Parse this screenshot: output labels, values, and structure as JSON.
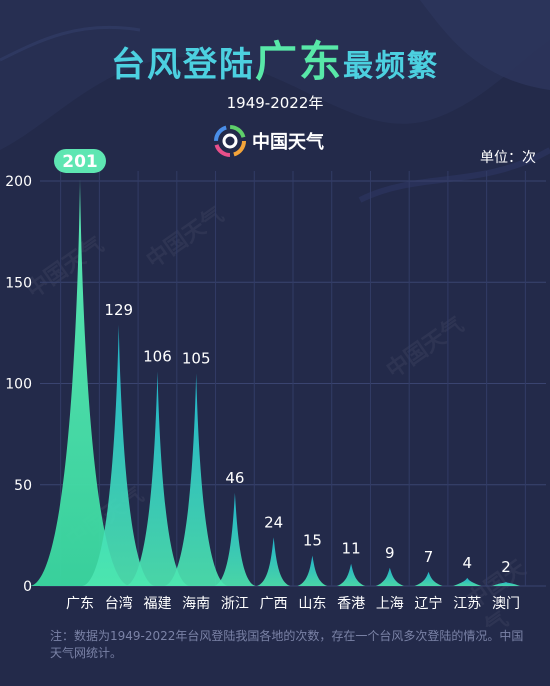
{
  "title": {
    "part1": "台风登陆",
    "highlight": "广东",
    "part2": "最频繁"
  },
  "subtitle": "1949-2022年",
  "logo": {
    "text": "中国天气",
    "icon": "china-weather-logo-icon"
  },
  "unit": "单位：次",
  "note": "注：数据为1949-2022年台风登陆我国各地的次数，存在一个台风多次登陆的情况。中国天气网统计。",
  "watermark": "中国天气",
  "colors": {
    "background": "#232a4a",
    "spike_top": "#22c3d8",
    "spike_bottom": "#4ee8b0",
    "badge": "#5ee6b2",
    "grid": "#3a4470"
  },
  "chart_data": {
    "type": "area",
    "categories": [
      "广东",
      "台湾",
      "福建",
      "海南",
      "浙江",
      "广西",
      "山东",
      "香港",
      "上海",
      "辽宁",
      "江苏",
      "澳门"
    ],
    "values": [
      201,
      129,
      106,
      105,
      46,
      24,
      15,
      11,
      9,
      7,
      4,
      2
    ],
    "yticks": [
      0,
      50,
      100,
      150,
      200
    ],
    "ylim": [
      0,
      200
    ],
    "grid": true,
    "highlight_index": 0
  }
}
